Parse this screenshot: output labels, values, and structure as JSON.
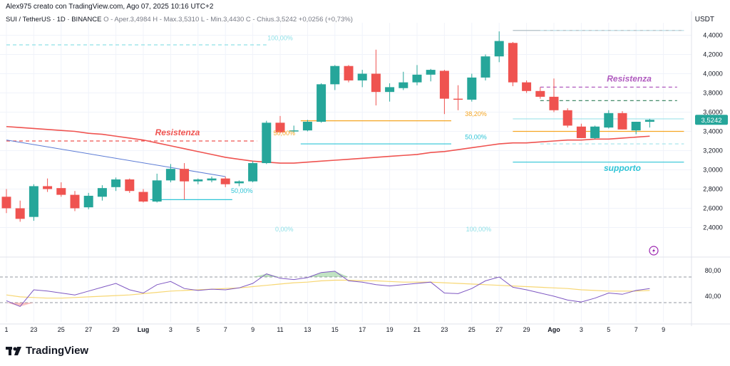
{
  "header": {
    "author": "Alex975 creato con TradingView.com, Ago 07, 2025 10:16 UTC+2"
  },
  "symbol": {
    "name": "SUI / TetherUS · 1D · BINANCE",
    "ohlc": "O - Aper.3,4984  H - Max.3,5310  L - Min.3,4430  C - Chius.3,5242  +0,0256 (+0,73%)"
  },
  "currency": "USDT",
  "brand": "TradingView",
  "colors": {
    "up": "#26a69a",
    "down": "#ef5350",
    "ma": "#ef5350",
    "resistance": "#ef5350",
    "resistance2": "#b05bbf",
    "support": "#2ec4d6",
    "fib_cyan": "#5fd3df",
    "fib_orange": "#f5a623",
    "rsi": "#7e57c2",
    "rsi_ma": "#f7d774",
    "price_badge": "#26a69a"
  },
  "chart_data": {
    "type": "candlestick",
    "y_axis": {
      "range": [
        2.1,
        4.5
      ],
      "ticks": [
        "4,4000",
        "4,2000",
        "4,0000",
        "3,8000",
        "3,6000",
        "3,4000",
        "3,2000",
        "3,0000",
        "2,8000",
        "2,6000",
        "2,4000"
      ],
      "tick_values": [
        4.4,
        4.2,
        4.0,
        3.8,
        3.6,
        3.4,
        3.2,
        3.0,
        2.8,
        2.6,
        2.4
      ]
    },
    "last_price": "3,5242",
    "x_labels": [
      "1",
      "23",
      "25",
      "27",
      "29",
      "Lug",
      "3",
      "5",
      "7",
      "9",
      "11",
      "13",
      "15",
      "17",
      "19",
      "21",
      "23",
      "25",
      "27",
      "29",
      "Ago",
      "3",
      "5",
      "7",
      "9"
    ],
    "x_label_index": [
      0,
      2,
      4,
      6,
      8,
      10,
      12,
      14,
      16,
      18,
      20,
      22,
      24,
      26,
      28,
      30,
      32,
      34,
      36,
      38,
      40,
      42,
      44,
      46,
      48
    ],
    "candles": [
      {
        "o": 2.72,
        "h": 2.8,
        "l": 2.55,
        "c": 2.6
      },
      {
        "o": 2.6,
        "h": 2.68,
        "l": 2.46,
        "c": 2.49
      },
      {
        "o": 2.51,
        "h": 2.85,
        "l": 2.47,
        "c": 2.83
      },
      {
        "o": 2.83,
        "h": 2.91,
        "l": 2.77,
        "c": 2.8
      },
      {
        "o": 2.81,
        "h": 2.87,
        "l": 2.72,
        "c": 2.74
      },
      {
        "o": 2.74,
        "h": 2.78,
        "l": 2.57,
        "c": 2.6
      },
      {
        "o": 2.61,
        "h": 2.76,
        "l": 2.59,
        "c": 2.73
      },
      {
        "o": 2.72,
        "h": 2.84,
        "l": 2.68,
        "c": 2.81
      },
      {
        "o": 2.82,
        "h": 2.92,
        "l": 2.78,
        "c": 2.9
      },
      {
        "o": 2.9,
        "h": 2.91,
        "l": 2.76,
        "c": 2.78
      },
      {
        "o": 2.77,
        "h": 2.8,
        "l": 2.66,
        "c": 2.67
      },
      {
        "o": 2.67,
        "h": 2.96,
        "l": 2.66,
        "c": 2.89
      },
      {
        "o": 2.89,
        "h": 3.06,
        "l": 2.87,
        "c": 3.01
      },
      {
        "o": 3.01,
        "h": 3.07,
        "l": 2.69,
        "c": 2.88
      },
      {
        "o": 2.88,
        "h": 2.91,
        "l": 2.85,
        "c": 2.9
      },
      {
        "o": 2.89,
        "h": 2.93,
        "l": 2.87,
        "c": 2.91
      },
      {
        "o": 2.91,
        "h": 2.93,
        "l": 2.82,
        "c": 2.85
      },
      {
        "o": 2.86,
        "h": 2.89,
        "l": 2.83,
        "c": 2.88
      },
      {
        "o": 2.88,
        "h": 3.09,
        "l": 2.87,
        "c": 3.07
      },
      {
        "o": 3.07,
        "h": 3.51,
        "l": 3.06,
        "c": 3.49
      },
      {
        "o": 3.49,
        "h": 3.56,
        "l": 3.38,
        "c": 3.39
      },
      {
        "o": 3.4,
        "h": 3.46,
        "l": 3.39,
        "c": 3.41
      },
      {
        "o": 3.41,
        "h": 3.52,
        "l": 3.4,
        "c": 3.5
      },
      {
        "o": 3.5,
        "h": 3.9,
        "l": 3.49,
        "c": 3.89
      },
      {
        "o": 3.89,
        "h": 4.09,
        "l": 3.83,
        "c": 4.08
      },
      {
        "o": 4.08,
        "h": 4.09,
        "l": 3.91,
        "c": 3.93
      },
      {
        "o": 3.93,
        "h": 4.04,
        "l": 3.86,
        "c": 4.0
      },
      {
        "o": 4.0,
        "h": 4.25,
        "l": 3.67,
        "c": 3.81
      },
      {
        "o": 3.81,
        "h": 3.9,
        "l": 3.71,
        "c": 3.86
      },
      {
        "o": 3.85,
        "h": 4.02,
        "l": 3.83,
        "c": 3.91
      },
      {
        "o": 3.91,
        "h": 4.09,
        "l": 3.88,
        "c": 3.99
      },
      {
        "o": 3.99,
        "h": 4.05,
        "l": 3.92,
        "c": 4.04
      },
      {
        "o": 4.03,
        "h": 4.04,
        "l": 3.58,
        "c": 3.74
      },
      {
        "o": 3.74,
        "h": 3.88,
        "l": 3.62,
        "c": 3.73
      },
      {
        "o": 3.73,
        "h": 4.0,
        "l": 3.71,
        "c": 3.96
      },
      {
        "o": 3.96,
        "h": 4.2,
        "l": 3.93,
        "c": 4.18
      },
      {
        "o": 4.18,
        "h": 4.44,
        "l": 4.12,
        "c": 4.34
      },
      {
        "o": 4.32,
        "h": 4.33,
        "l": 3.87,
        "c": 3.91
      },
      {
        "o": 3.91,
        "h": 3.93,
        "l": 3.8,
        "c": 3.82
      },
      {
        "o": 3.82,
        "h": 3.86,
        "l": 3.74,
        "c": 3.76
      },
      {
        "o": 3.76,
        "h": 3.95,
        "l": 3.6,
        "c": 3.62
      },
      {
        "o": 3.62,
        "h": 3.64,
        "l": 3.44,
        "c": 3.46
      },
      {
        "o": 3.45,
        "h": 3.48,
        "l": 3.33,
        "c": 3.33
      },
      {
        "o": 3.33,
        "h": 3.46,
        "l": 3.32,
        "c": 3.45
      },
      {
        "o": 3.44,
        "h": 3.62,
        "l": 3.43,
        "c": 3.59
      },
      {
        "o": 3.59,
        "h": 3.61,
        "l": 3.42,
        "c": 3.42
      },
      {
        "o": 3.41,
        "h": 3.5,
        "l": 3.37,
        "c": 3.5
      },
      {
        "o": 3.5,
        "h": 3.53,
        "l": 3.44,
        "c": 3.52
      }
    ],
    "moving_average": [
      3.45,
      3.44,
      3.43,
      3.42,
      3.41,
      3.4,
      3.38,
      3.37,
      3.35,
      3.33,
      3.31,
      3.28,
      3.25,
      3.22,
      3.19,
      3.16,
      3.13,
      3.11,
      3.09,
      3.08,
      3.07,
      3.07,
      3.08,
      3.09,
      3.1,
      3.11,
      3.12,
      3.13,
      3.14,
      3.15,
      3.16,
      3.18,
      3.19,
      3.21,
      3.23,
      3.25,
      3.27,
      3.28,
      3.28,
      3.29,
      3.3,
      3.31,
      3.31,
      3.32,
      3.32,
      3.33,
      3.34,
      3.35
    ],
    "trend_line": {
      "from": [
        0,
        3.31
      ],
      "to": [
        16,
        2.93
      ],
      "color": "#5b7bd5"
    },
    "horizontal_lines": [
      {
        "name": "resistance-left",
        "y": 3.3,
        "from": 0,
        "to": 18.3,
        "dashed": true,
        "color": "#ef5350"
      },
      {
        "name": "resistance-right",
        "y": 3.86,
        "from": 39,
        "to": 49,
        "dashed": true,
        "color": "#b05bbf"
      },
      {
        "name": "dark-dashed",
        "y": 3.72,
        "from": 39,
        "to": 49,
        "dashed": true,
        "color": "#2e7d57"
      },
      {
        "name": "support",
        "y": 3.08,
        "from": 37,
        "to": 49.5,
        "dashed": false,
        "color": "#2ec4d6"
      },
      {
        "name": "orange-right",
        "y": 3.4,
        "from": 37,
        "to": 49.5,
        "dashed": false,
        "color": "#f5a623"
      },
      {
        "name": "fib100-left",
        "y": 4.3,
        "from": 0,
        "to": 19,
        "dashed": true,
        "color": "#8fe0e7"
      },
      {
        "name": "fib50-left",
        "y": 2.69,
        "from": 10.5,
        "to": 16.5,
        "dashed": false,
        "color": "#2ec4d6"
      },
      {
        "name": "fib382-mid",
        "y": 3.51,
        "from": 21.5,
        "to": 32.5,
        "dashed": false,
        "color": "#f5a623"
      },
      {
        "name": "fib50-mid",
        "y": 3.27,
        "from": 21.5,
        "to": 32.5,
        "dashed": false,
        "color": "#2ec4d6"
      },
      {
        "name": "top-right",
        "y": 4.45,
        "from": 37,
        "to": 49.5,
        "dashed": false,
        "color": "#b0bec5"
      },
      {
        "name": "top-right-dashed",
        "y": 4.45,
        "from": 39,
        "to": 49.5,
        "dashed": true,
        "color": "#c7e8ef"
      },
      {
        "name": "low-right-dashed",
        "y": 3.27,
        "from": 39,
        "to": 49.5,
        "dashed": true,
        "color": "#9fe3ea"
      },
      {
        "name": "fib0-right",
        "y": 3.53,
        "from": 37,
        "to": 49.5,
        "dashed": false,
        "color": "#9fe3ea"
      }
    ],
    "annotations": [
      {
        "name": "resistenza-left",
        "text": "Resistenza",
        "x": 12.5,
        "y": 3.36,
        "color": "#ef5350"
      },
      {
        "name": "resistenza-right",
        "text": "Resistenza",
        "x": 45.5,
        "y": 3.92,
        "color": "#b05bbf"
      },
      {
        "name": "supporto",
        "text": "supporto",
        "x": 45.0,
        "y": 2.99,
        "color": "#2ec4d6"
      }
    ],
    "fib_labels": [
      {
        "name": "fib-100-left",
        "text": "100,00%",
        "x": 20.0,
        "y": 4.35,
        "color": "#8fe0e7"
      },
      {
        "name": "fib-50-left",
        "text": "50,00%",
        "x": 17.2,
        "y": 2.76,
        "color": "#2ec4d6"
      },
      {
        "name": "fib-50-left-2",
        "text": "50,00%",
        "x": 20.3,
        "y": 3.36,
        "color": "#f5a623"
      },
      {
        "name": "fib-382-mid",
        "text": "38,20%",
        "x": 34.3,
        "y": 3.56,
        "color": "#f5a623"
      },
      {
        "name": "fib-50-mid",
        "text": "50,00%",
        "x": 34.3,
        "y": 3.32,
        "color": "#2ec4d6"
      },
      {
        "name": "fib-0-mid",
        "text": "0,00%",
        "x": 20.3,
        "y": 2.36,
        "color": "#8fe0e7"
      },
      {
        "name": "fib-100-mid",
        "text": "100,00%",
        "x": 34.5,
        "y": 2.36,
        "color": "#8fe0e7"
      }
    ],
    "rsi": {
      "ticks": [
        "80,00",
        "40,00"
      ],
      "tick_values": [
        80,
        40
      ],
      "range": [
        0,
        100
      ],
      "levels": [
        70,
        30
      ],
      "values": [
        33,
        24,
        50,
        48,
        45,
        42,
        48,
        54,
        60,
        50,
        45,
        58,
        63,
        52,
        49,
        51,
        50,
        53,
        60,
        75,
        68,
        66,
        69,
        77,
        79,
        64,
        62,
        58,
        56,
        58,
        60,
        62,
        45,
        44,
        52,
        64,
        70,
        54,
        50,
        45,
        40,
        34,
        31,
        37,
        45,
        43,
        49,
        52
      ],
      "ma_values": [
        42,
        39,
        38,
        37,
        37,
        38,
        39,
        40,
        41,
        42,
        44,
        46,
        48,
        49,
        50,
        51,
        52,
        53,
        55,
        57,
        59,
        61,
        62,
        64,
        65,
        65,
        64,
        64,
        63,
        62,
        62,
        62,
        61,
        60,
        59,
        58,
        57,
        56,
        55,
        54,
        53,
        52,
        50,
        49,
        48,
        48,
        48,
        49
      ]
    }
  }
}
